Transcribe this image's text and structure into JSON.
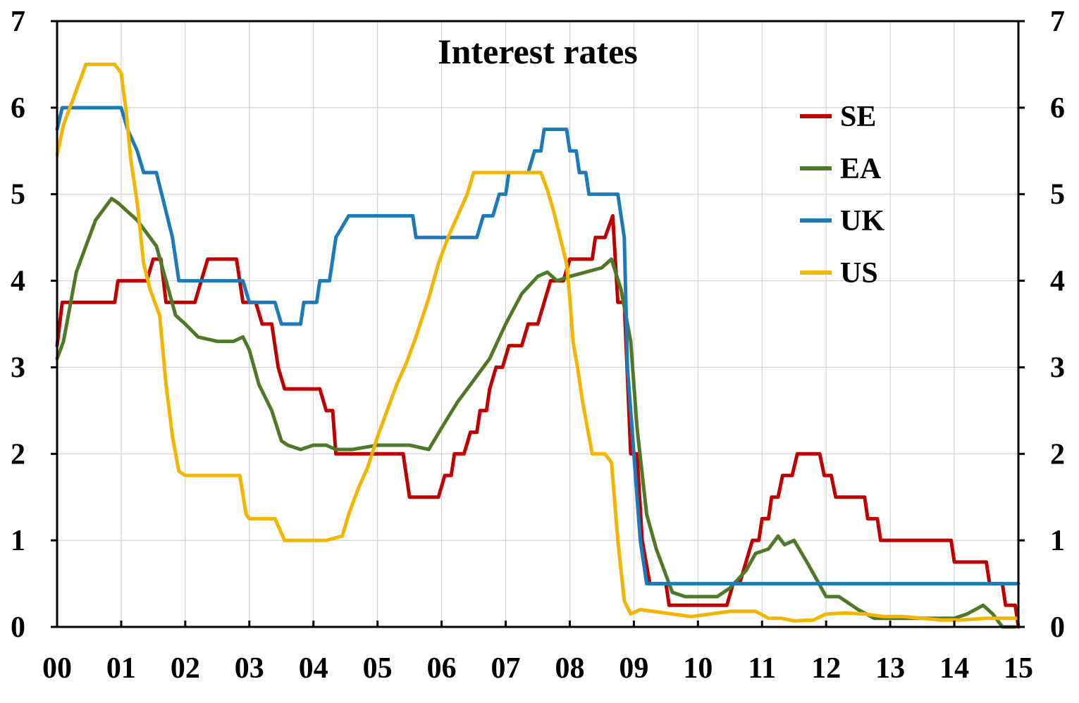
{
  "chart_data": {
    "type": "line",
    "title": "Interest rates",
    "xlabel": "",
    "ylabel": "",
    "xlim": [
      2000,
      2015
    ],
    "ylim": [
      0,
      7
    ],
    "x_tick_values": [
      2000,
      2001,
      2002,
      2003,
      2004,
      2005,
      2006,
      2007,
      2008,
      2009,
      2010,
      2011,
      2012,
      2013,
      2014,
      2015
    ],
    "x_tick_labels": [
      "00",
      "01",
      "02",
      "03",
      "04",
      "05",
      "06",
      "07",
      "08",
      "09",
      "10",
      "11",
      "12",
      "13",
      "14",
      "15"
    ],
    "y_ticks": [
      0,
      1,
      2,
      3,
      4,
      5,
      6,
      7
    ],
    "y_tick_labels": [
      "0",
      "1",
      "2",
      "3",
      "4",
      "5",
      "6",
      "7"
    ],
    "grid": true,
    "legend_position": "top-right",
    "series": [
      {
        "name": "SE",
        "color": "#c00000",
        "points": [
          [
            2000.0,
            3.25
          ],
          [
            2000.08,
            3.75
          ],
          [
            2000.9,
            3.75
          ],
          [
            2000.95,
            4.0
          ],
          [
            2001.4,
            4.0
          ],
          [
            2001.5,
            4.25
          ],
          [
            2001.62,
            4.25
          ],
          [
            2001.7,
            3.75
          ],
          [
            2002.15,
            3.75
          ],
          [
            2002.25,
            4.0
          ],
          [
            2002.35,
            4.25
          ],
          [
            2002.8,
            4.25
          ],
          [
            2002.9,
            3.75
          ],
          [
            2003.1,
            3.75
          ],
          [
            2003.2,
            3.5
          ],
          [
            2003.35,
            3.5
          ],
          [
            2003.45,
            3.0
          ],
          [
            2003.55,
            2.75
          ],
          [
            2004.1,
            2.75
          ],
          [
            2004.2,
            2.5
          ],
          [
            2004.3,
            2.5
          ],
          [
            2004.35,
            2.0
          ],
          [
            2005.4,
            2.0
          ],
          [
            2005.5,
            1.5
          ],
          [
            2005.95,
            1.5
          ],
          [
            2006.05,
            1.75
          ],
          [
            2006.15,
            1.75
          ],
          [
            2006.2,
            2.0
          ],
          [
            2006.35,
            2.0
          ],
          [
            2006.45,
            2.25
          ],
          [
            2006.55,
            2.25
          ],
          [
            2006.6,
            2.5
          ],
          [
            2006.7,
            2.5
          ],
          [
            2006.75,
            2.75
          ],
          [
            2006.85,
            3.0
          ],
          [
            2006.95,
            3.0
          ],
          [
            2007.05,
            3.25
          ],
          [
            2007.25,
            3.25
          ],
          [
            2007.35,
            3.5
          ],
          [
            2007.5,
            3.5
          ],
          [
            2007.6,
            3.75
          ],
          [
            2007.7,
            4.0
          ],
          [
            2007.9,
            4.0
          ],
          [
            2008.0,
            4.25
          ],
          [
            2008.35,
            4.25
          ],
          [
            2008.4,
            4.5
          ],
          [
            2008.55,
            4.5
          ],
          [
            2008.67,
            4.75
          ],
          [
            2008.75,
            3.75
          ],
          [
            2008.85,
            3.75
          ],
          [
            2008.95,
            2.0
          ],
          [
            2009.05,
            2.0
          ],
          [
            2009.13,
            1.0
          ],
          [
            2009.25,
            0.5
          ],
          [
            2009.5,
            0.5
          ],
          [
            2009.55,
            0.25
          ],
          [
            2010.45,
            0.25
          ],
          [
            2010.55,
            0.5
          ],
          [
            2010.65,
            0.5
          ],
          [
            2010.75,
            0.75
          ],
          [
            2010.85,
            1.0
          ],
          [
            2010.95,
            1.0
          ],
          [
            2011.0,
            1.25
          ],
          [
            2011.1,
            1.25
          ],
          [
            2011.15,
            1.5
          ],
          [
            2011.25,
            1.5
          ],
          [
            2011.32,
            1.75
          ],
          [
            2011.47,
            1.75
          ],
          [
            2011.55,
            2.0
          ],
          [
            2011.9,
            2.0
          ],
          [
            2011.97,
            1.75
          ],
          [
            2012.08,
            1.75
          ],
          [
            2012.15,
            1.5
          ],
          [
            2012.6,
            1.5
          ],
          [
            2012.65,
            1.25
          ],
          [
            2012.8,
            1.25
          ],
          [
            2012.85,
            1.0
          ],
          [
            2013.95,
            1.0
          ],
          [
            2014.0,
            0.75
          ],
          [
            2014.5,
            0.75
          ],
          [
            2014.55,
            0.5
          ],
          [
            2014.75,
            0.5
          ],
          [
            2014.8,
            0.25
          ],
          [
            2014.95,
            0.25
          ],
          [
            2015.0,
            0.0
          ]
        ]
      },
      {
        "name": "EA",
        "color": "#4e7a27",
        "points": [
          [
            2000.0,
            3.1
          ],
          [
            2000.1,
            3.3
          ],
          [
            2000.2,
            3.7
          ],
          [
            2000.3,
            4.1
          ],
          [
            2000.45,
            4.4
          ],
          [
            2000.6,
            4.7
          ],
          [
            2000.75,
            4.85
          ],
          [
            2000.85,
            4.95
          ],
          [
            2000.95,
            4.9
          ],
          [
            2001.1,
            4.8
          ],
          [
            2001.25,
            4.7
          ],
          [
            2001.4,
            4.55
          ],
          [
            2001.55,
            4.4
          ],
          [
            2001.7,
            4.0
          ],
          [
            2001.85,
            3.6
          ],
          [
            2002.0,
            3.5
          ],
          [
            2002.2,
            3.35
          ],
          [
            2002.5,
            3.3
          ],
          [
            2002.75,
            3.3
          ],
          [
            2002.9,
            3.35
          ],
          [
            2003.0,
            3.2
          ],
          [
            2003.15,
            2.8
          ],
          [
            2003.35,
            2.5
          ],
          [
            2003.5,
            2.15
          ],
          [
            2003.6,
            2.1
          ],
          [
            2003.8,
            2.05
          ],
          [
            2004.0,
            2.1
          ],
          [
            2004.2,
            2.1
          ],
          [
            2004.35,
            2.05
          ],
          [
            2004.6,
            2.05
          ],
          [
            2005.0,
            2.1
          ],
          [
            2005.5,
            2.1
          ],
          [
            2005.8,
            2.05
          ],
          [
            2006.0,
            2.3
          ],
          [
            2006.25,
            2.6
          ],
          [
            2006.5,
            2.85
          ],
          [
            2006.75,
            3.1
          ],
          [
            2007.0,
            3.5
          ],
          [
            2007.25,
            3.85
          ],
          [
            2007.5,
            4.05
          ],
          [
            2007.65,
            4.1
          ],
          [
            2007.8,
            4.0
          ],
          [
            2008.0,
            4.05
          ],
          [
            2008.25,
            4.1
          ],
          [
            2008.5,
            4.15
          ],
          [
            2008.65,
            4.25
          ],
          [
            2008.8,
            3.9
          ],
          [
            2008.95,
            3.3
          ],
          [
            2009.05,
            2.3
          ],
          [
            2009.2,
            1.3
          ],
          [
            2009.35,
            0.9
          ],
          [
            2009.6,
            0.4
          ],
          [
            2009.8,
            0.35
          ],
          [
            2010.0,
            0.35
          ],
          [
            2010.3,
            0.35
          ],
          [
            2010.5,
            0.45
          ],
          [
            2010.75,
            0.65
          ],
          [
            2010.9,
            0.85
          ],
          [
            2011.1,
            0.9
          ],
          [
            2011.25,
            1.05
          ],
          [
            2011.35,
            0.95
          ],
          [
            2011.5,
            1.0
          ],
          [
            2011.7,
            0.75
          ],
          [
            2011.85,
            0.55
          ],
          [
            2012.0,
            0.35
          ],
          [
            2012.2,
            0.35
          ],
          [
            2012.5,
            0.2
          ],
          [
            2012.75,
            0.1
          ],
          [
            2013.0,
            0.1
          ],
          [
            2013.5,
            0.1
          ],
          [
            2014.0,
            0.1
          ],
          [
            2014.2,
            0.15
          ],
          [
            2014.45,
            0.25
          ],
          [
            2014.6,
            0.15
          ],
          [
            2014.75,
            0.0
          ],
          [
            2014.95,
            0.0
          ]
        ]
      },
      {
        "name": "UK",
        "color": "#1c7ab9",
        "points": [
          [
            2000.0,
            5.75
          ],
          [
            2000.08,
            6.0
          ],
          [
            2001.0,
            6.0
          ],
          [
            2001.1,
            5.75
          ],
          [
            2001.25,
            5.5
          ],
          [
            2001.35,
            5.25
          ],
          [
            2001.55,
            5.25
          ],
          [
            2001.8,
            4.5
          ],
          [
            2001.9,
            4.0
          ],
          [
            2002.9,
            4.0
          ],
          [
            2003.0,
            3.75
          ],
          [
            2003.4,
            3.75
          ],
          [
            2003.5,
            3.5
          ],
          [
            2003.8,
            3.5
          ],
          [
            2003.85,
            3.75
          ],
          [
            2004.05,
            3.75
          ],
          [
            2004.1,
            4.0
          ],
          [
            2004.25,
            4.0
          ],
          [
            2004.35,
            4.5
          ],
          [
            2004.55,
            4.75
          ],
          [
            2005.55,
            4.75
          ],
          [
            2005.6,
            4.5
          ],
          [
            2006.55,
            4.5
          ],
          [
            2006.65,
            4.75
          ],
          [
            2006.8,
            4.75
          ],
          [
            2006.9,
            5.0
          ],
          [
            2007.0,
            5.0
          ],
          [
            2007.05,
            5.25
          ],
          [
            2007.35,
            5.25
          ],
          [
            2007.45,
            5.5
          ],
          [
            2007.55,
            5.5
          ],
          [
            2007.6,
            5.75
          ],
          [
            2007.95,
            5.75
          ],
          [
            2008.0,
            5.5
          ],
          [
            2008.1,
            5.5
          ],
          [
            2008.15,
            5.25
          ],
          [
            2008.25,
            5.25
          ],
          [
            2008.3,
            5.0
          ],
          [
            2008.75,
            5.0
          ],
          [
            2008.85,
            4.5
          ],
          [
            2008.9,
            3.0
          ],
          [
            2009.0,
            2.0
          ],
          [
            2009.05,
            1.5
          ],
          [
            2009.1,
            1.0
          ],
          [
            2009.2,
            0.5
          ],
          [
            2015.0,
            0.5
          ]
        ]
      },
      {
        "name": "US",
        "color": "#f2b500",
        "points": [
          [
            2000.0,
            5.45
          ],
          [
            2000.1,
            5.8
          ],
          [
            2000.25,
            6.1
          ],
          [
            2000.45,
            6.5
          ],
          [
            2000.65,
            6.5
          ],
          [
            2000.9,
            6.5
          ],
          [
            2001.0,
            6.4
          ],
          [
            2001.08,
            5.95
          ],
          [
            2001.15,
            5.4
          ],
          [
            2001.25,
            4.9
          ],
          [
            2001.35,
            4.2
          ],
          [
            2001.45,
            3.9
          ],
          [
            2001.6,
            3.6
          ],
          [
            2001.7,
            2.8
          ],
          [
            2001.8,
            2.2
          ],
          [
            2001.9,
            1.8
          ],
          [
            2002.0,
            1.75
          ],
          [
            2002.5,
            1.75
          ],
          [
            2002.85,
            1.75
          ],
          [
            2002.95,
            1.3
          ],
          [
            2003.0,
            1.25
          ],
          [
            2003.4,
            1.25
          ],
          [
            2003.55,
            1.0
          ],
          [
            2003.8,
            1.0
          ],
          [
            2004.2,
            1.0
          ],
          [
            2004.45,
            1.05
          ],
          [
            2004.55,
            1.3
          ],
          [
            2004.7,
            1.6
          ],
          [
            2004.85,
            1.85
          ],
          [
            2005.0,
            2.2
          ],
          [
            2005.15,
            2.5
          ],
          [
            2005.3,
            2.8
          ],
          [
            2005.45,
            3.05
          ],
          [
            2005.6,
            3.35
          ],
          [
            2005.8,
            3.8
          ],
          [
            2005.95,
            4.2
          ],
          [
            2006.1,
            4.5
          ],
          [
            2006.25,
            4.75
          ],
          [
            2006.4,
            5.0
          ],
          [
            2006.5,
            5.25
          ],
          [
            2006.9,
            5.25
          ],
          [
            2007.3,
            5.25
          ],
          [
            2007.55,
            5.25
          ],
          [
            2007.65,
            5.05
          ],
          [
            2007.75,
            4.8
          ],
          [
            2007.85,
            4.5
          ],
          [
            2007.95,
            4.2
          ],
          [
            2008.0,
            3.8
          ],
          [
            2008.05,
            3.3
          ],
          [
            2008.12,
            3.0
          ],
          [
            2008.2,
            2.6
          ],
          [
            2008.35,
            2.0
          ],
          [
            2008.55,
            2.0
          ],
          [
            2008.65,
            1.9
          ],
          [
            2008.75,
            1.0
          ],
          [
            2008.85,
            0.3
          ],
          [
            2008.95,
            0.15
          ],
          [
            2009.1,
            0.2
          ],
          [
            2009.3,
            0.18
          ],
          [
            2009.6,
            0.15
          ],
          [
            2009.9,
            0.12
          ],
          [
            2010.2,
            0.15
          ],
          [
            2010.5,
            0.18
          ],
          [
            2010.9,
            0.18
          ],
          [
            2011.1,
            0.1
          ],
          [
            2011.3,
            0.1
          ],
          [
            2011.5,
            0.07
          ],
          [
            2011.8,
            0.08
          ],
          [
            2012.0,
            0.15
          ],
          [
            2012.3,
            0.16
          ],
          [
            2012.6,
            0.15
          ],
          [
            2012.9,
            0.12
          ],
          [
            2013.2,
            0.12
          ],
          [
            2013.5,
            0.1
          ],
          [
            2013.8,
            0.08
          ],
          [
            2014.1,
            0.08
          ],
          [
            2014.5,
            0.1
          ],
          [
            2014.8,
            0.1
          ],
          [
            2015.0,
            0.1
          ]
        ]
      }
    ]
  }
}
